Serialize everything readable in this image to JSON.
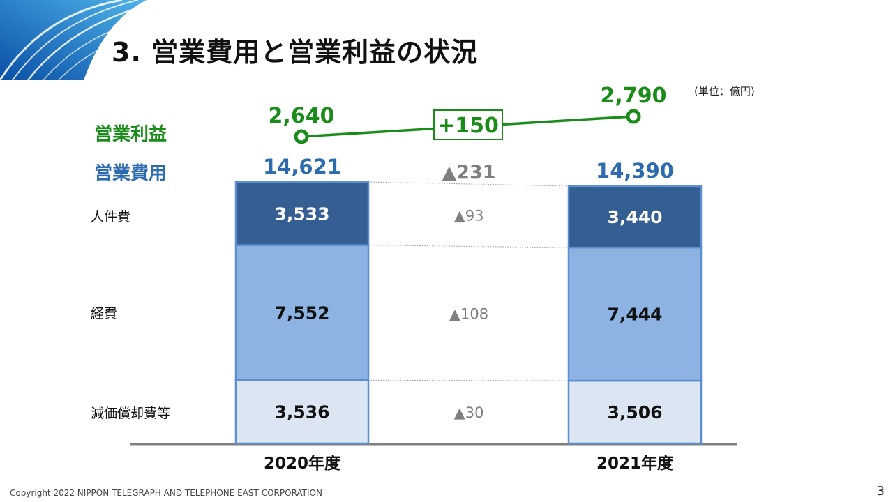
{
  "title": "3. 営業費用と営業利益の状況",
  "unit_label": "(単位：億円)",
  "row_labels": {
    "operating_profit": "営業利益",
    "operating_expenses": "営業費用"
  },
  "footer": {
    "copyright": "Copyright 2022 NIPPON TELEGRAPH AND TELEPHONE EAST CORPORATION",
    "page_number": "3"
  },
  "colors": {
    "personnel": "#355f93",
    "expenses": "#8db3e2",
    "depreciation": "#dce6f2",
    "bar_border": "#5b8fd0",
    "profit_green": "#1a8c1a",
    "total_blue": "#2c6bb0",
    "diff_gray": "#7f7f7f",
    "baseline": "#7f7f7f"
  },
  "chart_data": {
    "type": "bar",
    "stacked": true,
    "categories": [
      "2020年度",
      "2021年度"
    ],
    "series": [
      {
        "name": "減価償却費等",
        "values": [
          3536,
          3506
        ],
        "labels": [
          "3,536",
          "3,506"
        ],
        "diff": "▲30"
      },
      {
        "name": "経費",
        "values": [
          7552,
          7444
        ],
        "labels": [
          "7,552",
          "7,444"
        ],
        "diff": "▲108"
      },
      {
        "name": "人件費",
        "values": [
          3533,
          3440
        ],
        "labels": [
          "3,533",
          "3,440"
        ],
        "diff": "▲93"
      }
    ],
    "totals": {
      "values": [
        14621,
        14390
      ],
      "labels": [
        "14,621",
        "14,390"
      ],
      "diff": "▲231"
    },
    "operating_profit": {
      "values": [
        2640,
        2790
      ],
      "labels": [
        "2,640",
        "2,790"
      ],
      "diff": "+150"
    }
  }
}
